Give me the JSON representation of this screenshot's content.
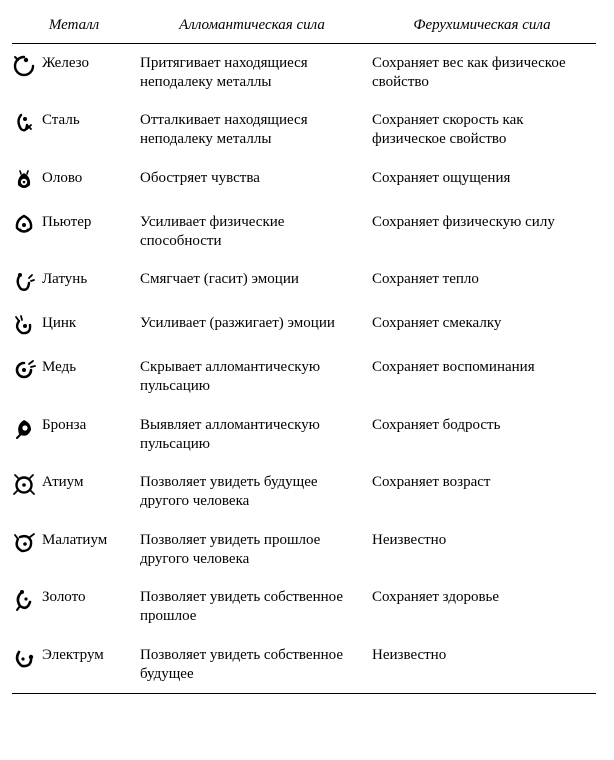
{
  "table": {
    "headers": {
      "metal": "Металл",
      "allomantic": "Алломантическая сила",
      "feruchemic": "Ферухимическая сила"
    },
    "font_family": "serif",
    "font_size_pt": 11,
    "header_font_style": "italic",
    "rule_color": "#000000",
    "background_color": "#ffffff",
    "text_color": "#000000",
    "icon_fill": "#000000",
    "rows": [
      {
        "icon": "iron",
        "metal": "Железо",
        "allo": "Притягивает находящиеся неподалеку металлы",
        "feru": "Сохраняет вес как физическое свойство"
      },
      {
        "icon": "steel",
        "metal": "Сталь",
        "allo": "Отталкивает находящиеся неподалеку металлы",
        "feru": "Сохраняет скорость как физическое свойство"
      },
      {
        "icon": "tin",
        "metal": "Олово",
        "allo": "Обостряет чувства",
        "feru": "Сохраняет ощущения"
      },
      {
        "icon": "pewter",
        "metal": "Пьютер",
        "allo": "Усиливает физические способности",
        "feru": "Сохраняет физическую силу"
      },
      {
        "icon": "brass",
        "metal": "Латунь",
        "allo": "Смягчает (гасит) эмоции",
        "feru": "Сохраняет тепло"
      },
      {
        "icon": "zinc",
        "metal": "Цинк",
        "allo": "Усиливает (разжигает) эмоции",
        "feru": "Сохраняет смекалку"
      },
      {
        "icon": "copper",
        "metal": "Медь",
        "allo": "Скрывает алломантическую пульсацию",
        "feru": "Сохраняет воспоминания"
      },
      {
        "icon": "bronze",
        "metal": "Бронза",
        "allo": "Выявляет алломантическую пульсацию",
        "feru": "Сохраняет бодрость"
      },
      {
        "icon": "atium",
        "metal": "Атиум",
        "allo": "Позволяет увидеть будущее другого человека",
        "feru": "Сохраняет возраст"
      },
      {
        "icon": "malatium",
        "metal": "Малатиум",
        "allo": "Позволяет увидеть прошлое другого человека",
        "feru": "Неизвестно"
      },
      {
        "icon": "gold",
        "metal": "Золото",
        "allo": "Позволяет увидеть собственное прошлое",
        "feru": "Сохраняет здоровье"
      },
      {
        "icon": "electrum",
        "metal": "Электрум",
        "allo": "Позволяет увидеть собственное будущее",
        "feru": "Неизвестно"
      }
    ]
  }
}
